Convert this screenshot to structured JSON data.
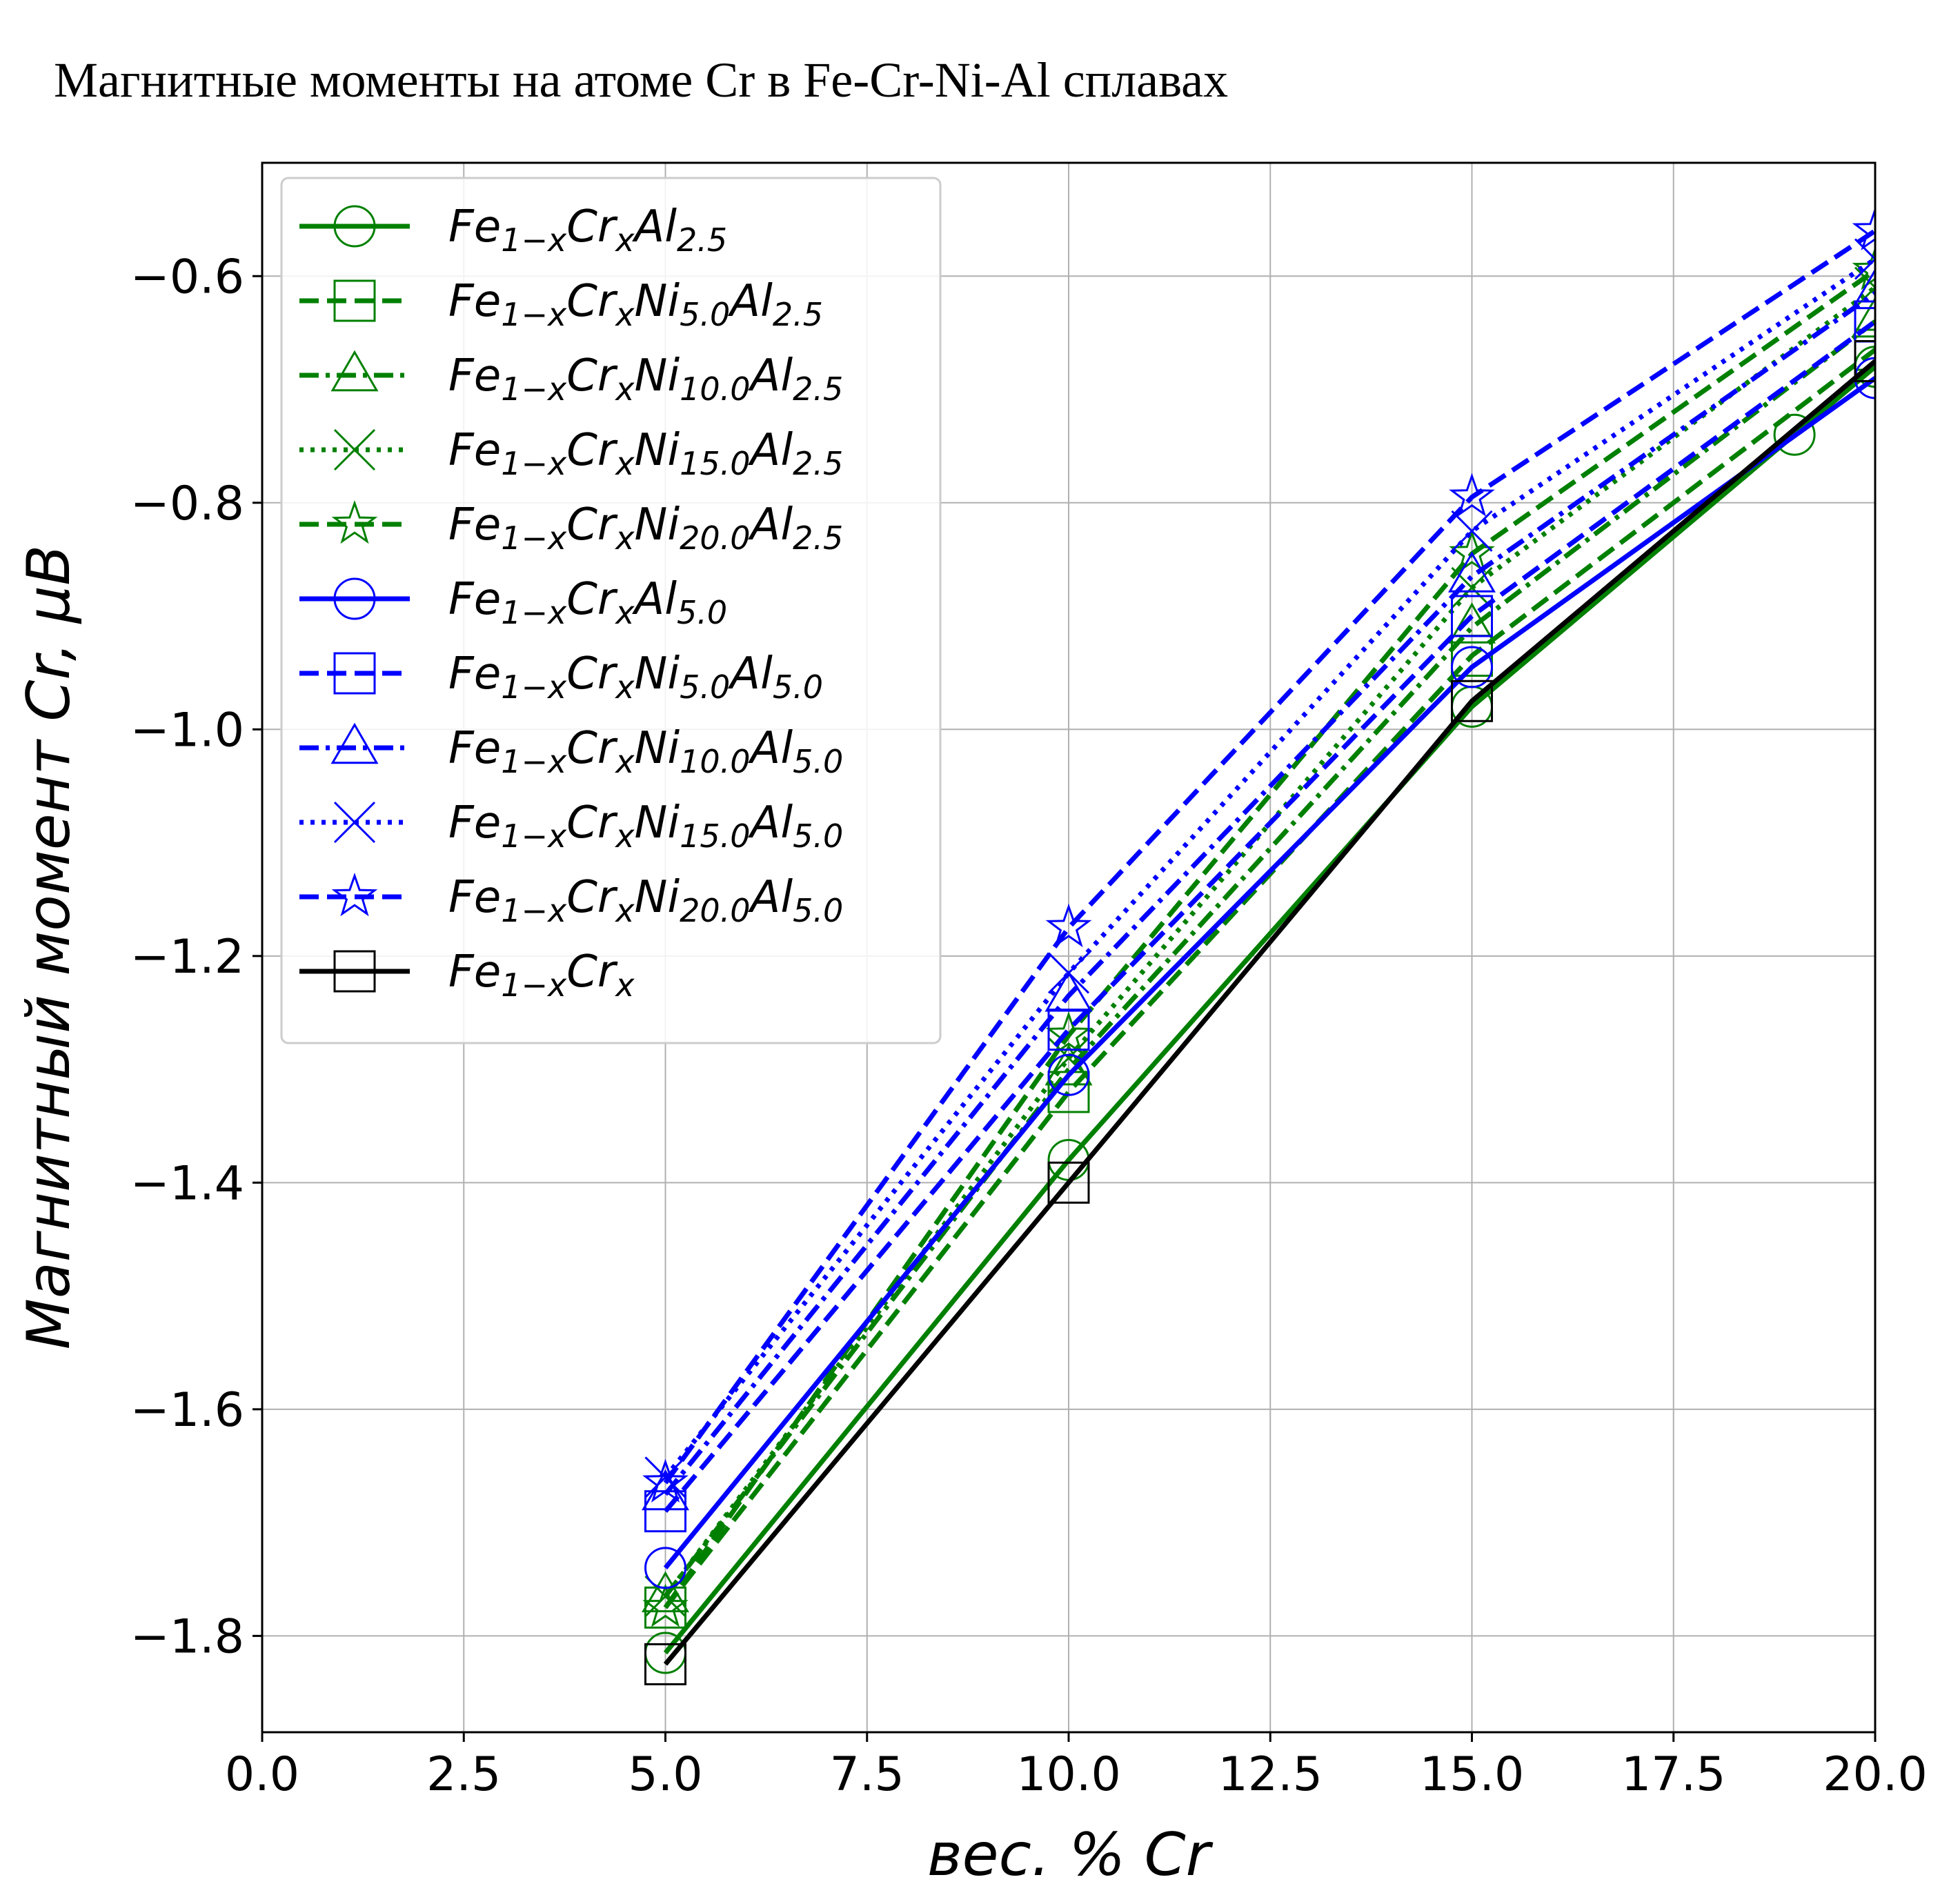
{
  "title": "Магнитные моменты на атоме Cr в Fe-Cr-Ni-Al сплавах",
  "chart_data": {
    "type": "line",
    "title": "Магнитные моменты на атоме Cr в Fe-Cr-Ni-Al сплавах",
    "xlabel": "вес. % Cr",
    "ylabel": "Магнитный момент Cr, μB",
    "xlim": [
      0,
      20
    ],
    "ylim": [
      -1.885,
      -0.5
    ],
    "x_ticks": [
      0.0,
      2.5,
      5.0,
      7.5,
      10.0,
      12.5,
      15.0,
      17.5,
      20.0
    ],
    "x_tick_labels": [
      "0.0",
      "2.5",
      "5.0",
      "7.5",
      "10.0",
      "12.5",
      "15.0",
      "17.5",
      "20.0"
    ],
    "y_ticks": [
      -1.8,
      -1.6,
      -1.4,
      -1.2,
      -1.0,
      -0.8,
      -0.6
    ],
    "y_tick_labels": [
      "−1.8",
      "−1.6",
      "−1.4",
      "−1.2",
      "−1.0",
      "−0.8",
      "−0.6"
    ],
    "grid": true,
    "legend_position": "top-left",
    "series": [
      {
        "name": "Fe1−xCrxAl2.5",
        "base": "Fe",
        "parts": [
          [
            "1−x",
            "Cr"
          ],
          [
            "x",
            "Al"
          ],
          [
            "2.5",
            ""
          ]
        ],
        "color": "#008000",
        "style": "solid",
        "marker": "circle",
        "x": [
          5,
          10,
          15,
          19,
          20
        ],
        "y": [
          -1.815,
          -1.38,
          -0.98,
          -0.74,
          -0.68
        ]
      },
      {
        "name": "Fe1−xCrxNi5.0Al2.5",
        "base": "Fe",
        "parts": [
          [
            "1−x",
            "Cr"
          ],
          [
            "x",
            "Ni"
          ],
          [
            "5.0",
            "Al"
          ],
          [
            "2.5",
            ""
          ]
        ],
        "color": "#008000",
        "style": "dashed",
        "marker": "square",
        "x": [
          5,
          10,
          15,
          20
        ],
        "y": [
          -1.775,
          -1.32,
          -0.935,
          -0.665
        ]
      },
      {
        "name": "Fe1−xCrxNi10.0Al2.5",
        "base": "Fe",
        "parts": [
          [
            "1−x",
            "Cr"
          ],
          [
            "x",
            "Ni"
          ],
          [
            "10.0",
            "Al"
          ],
          [
            "2.5",
            ""
          ]
        ],
        "color": "#008000",
        "style": "dashdot",
        "marker": "triangle",
        "x": [
          5,
          10,
          15,
          20
        ],
        "y": [
          -1.765,
          -1.3,
          -0.91,
          -0.64
        ]
      },
      {
        "name": "Fe1−xCrxNi15.0Al2.5",
        "base": "Fe",
        "parts": [
          [
            "1−x",
            "Cr"
          ],
          [
            "x",
            "Ni"
          ],
          [
            "15.0",
            "Al"
          ],
          [
            "2.5",
            ""
          ]
        ],
        "color": "#008000",
        "style": "dotted",
        "marker": "x",
        "x": [
          5,
          10,
          15,
          20
        ],
        "y": [
          -1.765,
          -1.29,
          -0.875,
          -0.61
        ]
      },
      {
        "name": "Fe1−xCrxNi20.0Al2.5",
        "base": "Fe",
        "parts": [
          [
            "1−x",
            "Cr"
          ],
          [
            "x",
            "Ni"
          ],
          [
            "20.0",
            "Al"
          ],
          [
            "2.5",
            ""
          ]
        ],
        "color": "#008000",
        "style": "dashed",
        "marker": "star",
        "x": [
          5,
          10,
          15,
          20
        ],
        "y": [
          -1.775,
          -1.27,
          -0.845,
          -0.595
        ]
      },
      {
        "name": "Fe1−xCrxAl5.0",
        "base": "Fe",
        "parts": [
          [
            "1−x",
            "Cr"
          ],
          [
            "x",
            "Al"
          ],
          [
            "5.0",
            ""
          ]
        ],
        "color": "#0000ff",
        "style": "solid",
        "marker": "circle",
        "x": [
          5,
          10,
          15,
          20
        ],
        "y": [
          -1.74,
          -1.305,
          -0.945,
          -0.69
        ]
      },
      {
        "name": "Fe1−xCrxNi5.0Al5.0",
        "base": "Fe",
        "parts": [
          [
            "1−x",
            "Cr"
          ],
          [
            "x",
            "Ni"
          ],
          [
            "5.0",
            "Al"
          ],
          [
            "5.0",
            ""
          ]
        ],
        "color": "#0000ff",
        "style": "dashed",
        "marker": "square",
        "x": [
          5,
          10,
          15,
          20
        ],
        "y": [
          -1.69,
          -1.265,
          -0.9,
          -0.64
        ]
      },
      {
        "name": "Fe1−xCrxNi10.0Al5.0",
        "base": "Fe",
        "parts": [
          [
            "1−x",
            "Cr"
          ],
          [
            "x",
            "Ni"
          ],
          [
            "10.0",
            "Al"
          ],
          [
            "5.0",
            ""
          ]
        ],
        "color": "#0000ff",
        "style": "dashdot",
        "marker": "triangle",
        "x": [
          5,
          10,
          15,
          20
        ],
        "y": [
          -1.675,
          -1.235,
          -0.865,
          -0.615
        ]
      },
      {
        "name": "Fe1−xCrxNi15.0Al5.0",
        "base": "Fe",
        "parts": [
          [
            "1−x",
            "Cr"
          ],
          [
            "x",
            "Ni"
          ],
          [
            "15.0",
            "Al"
          ],
          [
            "5.0",
            ""
          ]
        ],
        "color": "#0000ff",
        "style": "dotted",
        "marker": "x",
        "x": [
          5,
          10,
          15,
          20
        ],
        "y": [
          -1.66,
          -1.215,
          -0.825,
          -0.585
        ]
      },
      {
        "name": "Fe1−xCrxNi20.0Al5.0",
        "base": "Fe",
        "parts": [
          [
            "1−x",
            "Cr"
          ],
          [
            "x",
            "Ni"
          ],
          [
            "20.0",
            "Al"
          ],
          [
            "5.0",
            ""
          ]
        ],
        "color": "#0000ff",
        "style": "dashed",
        "marker": "star",
        "x": [
          5,
          10,
          15,
          20
        ],
        "y": [
          -1.665,
          -1.175,
          -0.795,
          -0.56
        ]
      },
      {
        "name": "Fe1−xCrx",
        "base": "Fe",
        "parts": [
          [
            "1−x",
            "Cr"
          ],
          [
            "x",
            ""
          ]
        ],
        "color": "#000000",
        "style": "solid",
        "marker": "square",
        "x": [
          5,
          10,
          15,
          20
        ],
        "y": [
          -1.825,
          -1.4,
          -0.975,
          -0.675
        ]
      }
    ]
  }
}
